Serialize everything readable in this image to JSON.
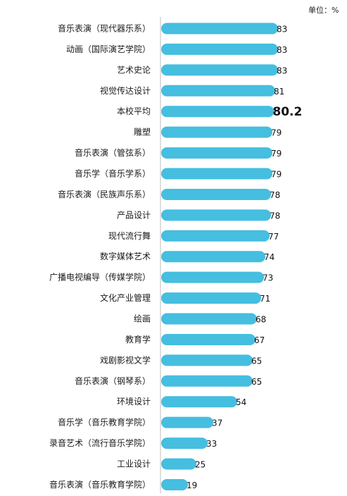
{
  "chart_data": {
    "type": "bar",
    "orientation": "horizontal",
    "unit_label": "单位：%",
    "bar_color": "#45BEE0",
    "highlight_category": "本校平均",
    "categories": [
      "音乐表演（现代器乐系）",
      "动画（国际演艺学院）",
      "艺术史论",
      "视觉传达设计",
      "本校平均",
      "雕塑",
      "音乐表演（管弦系）",
      "音乐学（音乐学系）",
      "音乐表演（民族声乐系）",
      "产品设计",
      "现代流行舞",
      "数字媒体艺术",
      "广播电视编导（传媒学院）",
      "文化产业管理",
      "绘画",
      "教育学",
      "戏剧影视文学",
      "音乐表演（钢琴系）",
      "环境设计",
      "音乐学（音乐教育学院）",
      "录音艺术（流行音乐学院）",
      "工业设计",
      "音乐表演（音乐教育学院）"
    ],
    "values": [
      83,
      83,
      83,
      81,
      80.2,
      79,
      79,
      79,
      78,
      78,
      77,
      74,
      73,
      71,
      68,
      67,
      65,
      65,
      54,
      37,
      33,
      25,
      19
    ],
    "xlim": [
      0,
      100
    ]
  }
}
